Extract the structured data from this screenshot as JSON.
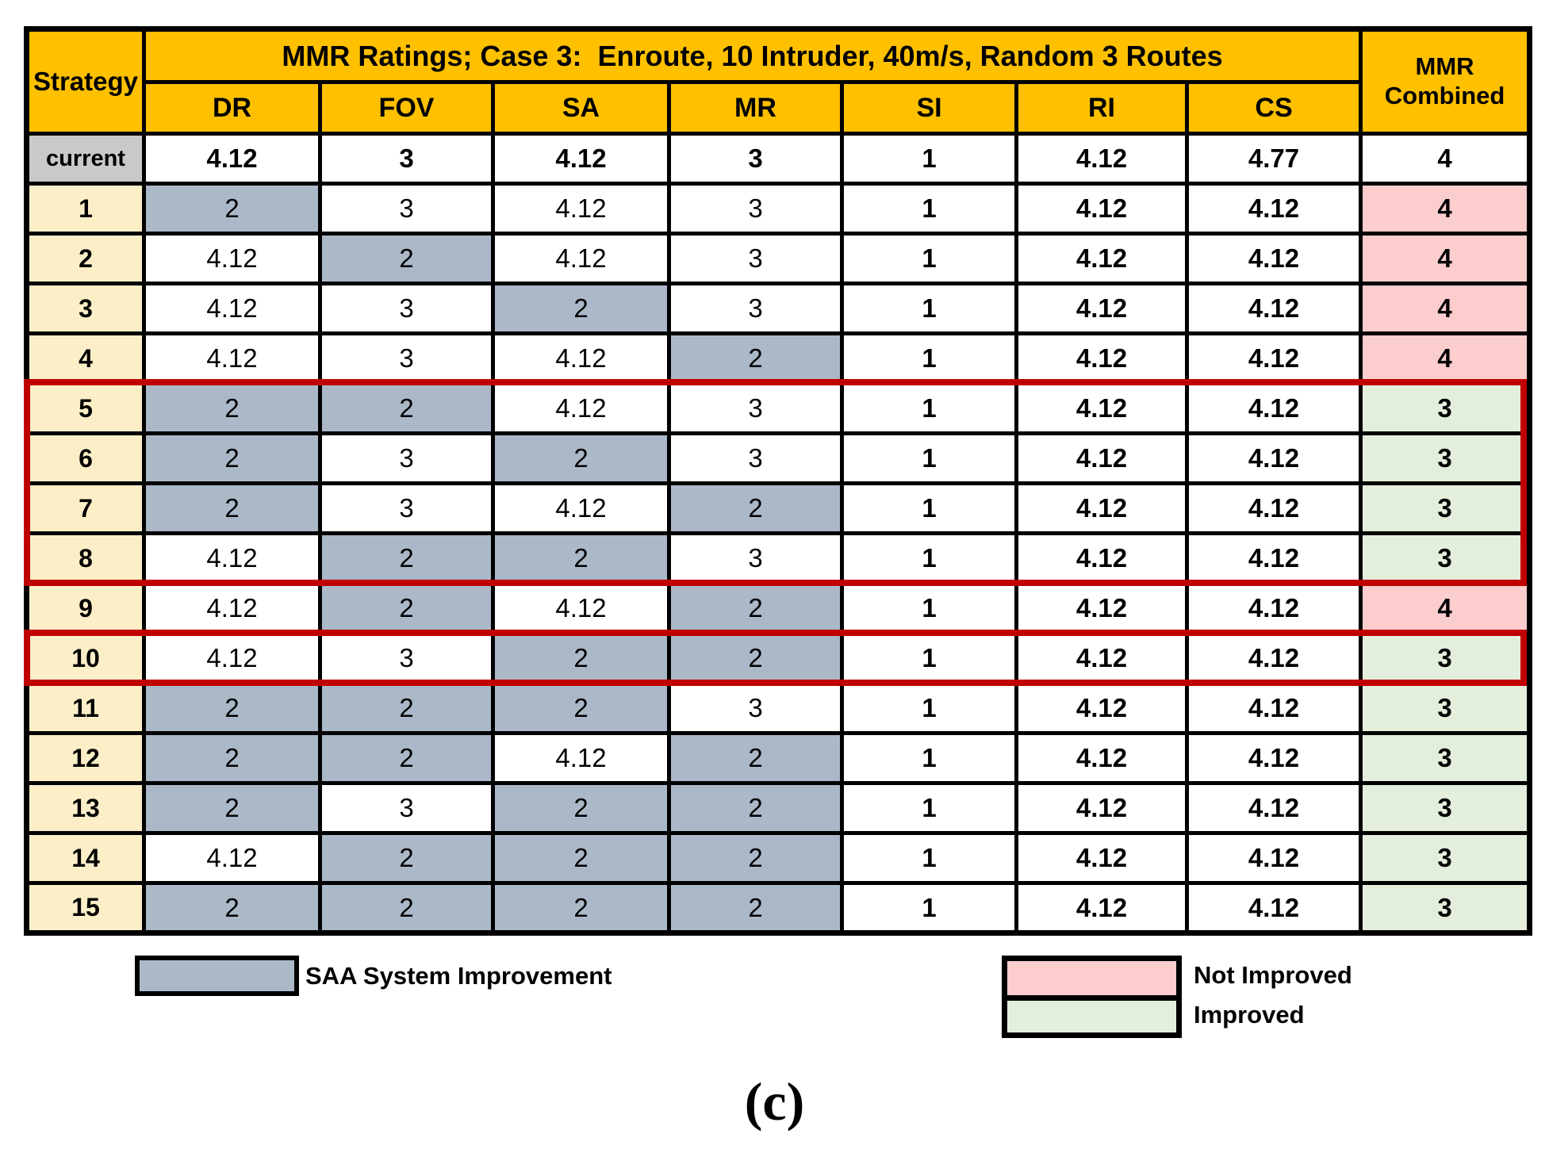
{
  "title": "MMR Ratings; Case 3:  Enroute, 10 Intruder, 40m/s, Random 3 Routes",
  "corner_label": "Strategy",
  "combined_header": "MMR\nCombined",
  "columns": [
    "DR",
    "FOV",
    "SA",
    "MR",
    "SI",
    "RI",
    "CS"
  ],
  "rows": [
    {
      "label": "current",
      "values": [
        "4.12",
        "3",
        "4.12",
        "3",
        "1",
        "4.12",
        "4.77"
      ],
      "highlighted": [],
      "combined": "4",
      "combined_state": "plain"
    },
    {
      "label": "1",
      "values": [
        "2",
        "3",
        "4.12",
        "3",
        "1",
        "4.12",
        "4.12"
      ],
      "highlighted": [
        0
      ],
      "combined": "4",
      "combined_state": "not_improved"
    },
    {
      "label": "2",
      "values": [
        "4.12",
        "2",
        "4.12",
        "3",
        "1",
        "4.12",
        "4.12"
      ],
      "highlighted": [
        1
      ],
      "combined": "4",
      "combined_state": "not_improved"
    },
    {
      "label": "3",
      "values": [
        "4.12",
        "3",
        "2",
        "3",
        "1",
        "4.12",
        "4.12"
      ],
      "highlighted": [
        2
      ],
      "combined": "4",
      "combined_state": "not_improved"
    },
    {
      "label": "4",
      "values": [
        "4.12",
        "3",
        "4.12",
        "2",
        "1",
        "4.12",
        "4.12"
      ],
      "highlighted": [
        3
      ],
      "combined": "4",
      "combined_state": "not_improved"
    },
    {
      "label": "5",
      "values": [
        "2",
        "2",
        "4.12",
        "3",
        "1",
        "4.12",
        "4.12"
      ],
      "highlighted": [
        0,
        1
      ],
      "combined": "3",
      "combined_state": "improved"
    },
    {
      "label": "6",
      "values": [
        "2",
        "3",
        "2",
        "3",
        "1",
        "4.12",
        "4.12"
      ],
      "highlighted": [
        0,
        2
      ],
      "combined": "3",
      "combined_state": "improved"
    },
    {
      "label": "7",
      "values": [
        "2",
        "3",
        "4.12",
        "2",
        "1",
        "4.12",
        "4.12"
      ],
      "highlighted": [
        0,
        3
      ],
      "combined": "3",
      "combined_state": "improved"
    },
    {
      "label": "8",
      "values": [
        "4.12",
        "2",
        "2",
        "3",
        "1",
        "4.12",
        "4.12"
      ],
      "highlighted": [
        1,
        2
      ],
      "combined": "3",
      "combined_state": "improved"
    },
    {
      "label": "9",
      "values": [
        "4.12",
        "2",
        "4.12",
        "2",
        "1",
        "4.12",
        "4.12"
      ],
      "highlighted": [
        1,
        3
      ],
      "combined": "4",
      "combined_state": "not_improved"
    },
    {
      "label": "10",
      "values": [
        "4.12",
        "3",
        "2",
        "2",
        "1",
        "4.12",
        "4.12"
      ],
      "highlighted": [
        2,
        3
      ],
      "combined": "3",
      "combined_state": "improved"
    },
    {
      "label": "11",
      "values": [
        "2",
        "2",
        "2",
        "3",
        "1",
        "4.12",
        "4.12"
      ],
      "highlighted": [
        0,
        1,
        2
      ],
      "combined": "3",
      "combined_state": "improved"
    },
    {
      "label": "12",
      "values": [
        "2",
        "2",
        "4.12",
        "2",
        "1",
        "4.12",
        "4.12"
      ],
      "highlighted": [
        0,
        1,
        3
      ],
      "combined": "3",
      "combined_state": "improved"
    },
    {
      "label": "13",
      "values": [
        "2",
        "3",
        "2",
        "2",
        "1",
        "4.12",
        "4.12"
      ],
      "highlighted": [
        0,
        2,
        3
      ],
      "combined": "3",
      "combined_state": "improved"
    },
    {
      "label": "14",
      "values": [
        "4.12",
        "2",
        "2",
        "2",
        "1",
        "4.12",
        "4.12"
      ],
      "highlighted": [
        1,
        2,
        3
      ],
      "combined": "3",
      "combined_state": "improved"
    },
    {
      "label": "15",
      "values": [
        "2",
        "2",
        "2",
        "2",
        "1",
        "4.12",
        "4.12"
      ],
      "highlighted": [
        0,
        1,
        2,
        3
      ],
      "combined": "3",
      "combined_state": "improved"
    }
  ],
  "red_boxes": [
    {
      "from_strategy": "5",
      "to_strategy": "8"
    },
    {
      "from_strategy": "10",
      "to_strategy": "10"
    }
  ],
  "legend": {
    "saa_label": "SAA System Improvement",
    "not_improved_label": "Not Improved",
    "improved_label": "Improved"
  },
  "caption": "(c)",
  "colors": {
    "header": "#FFC000",
    "strategy_label": "#FCEFC8",
    "current_label": "#C9C9C9",
    "saa_highlight": "#ABB8C8",
    "not_improved": "#FCCDCD",
    "improved": "#E3EFDC",
    "red_box": "#C00000"
  }
}
